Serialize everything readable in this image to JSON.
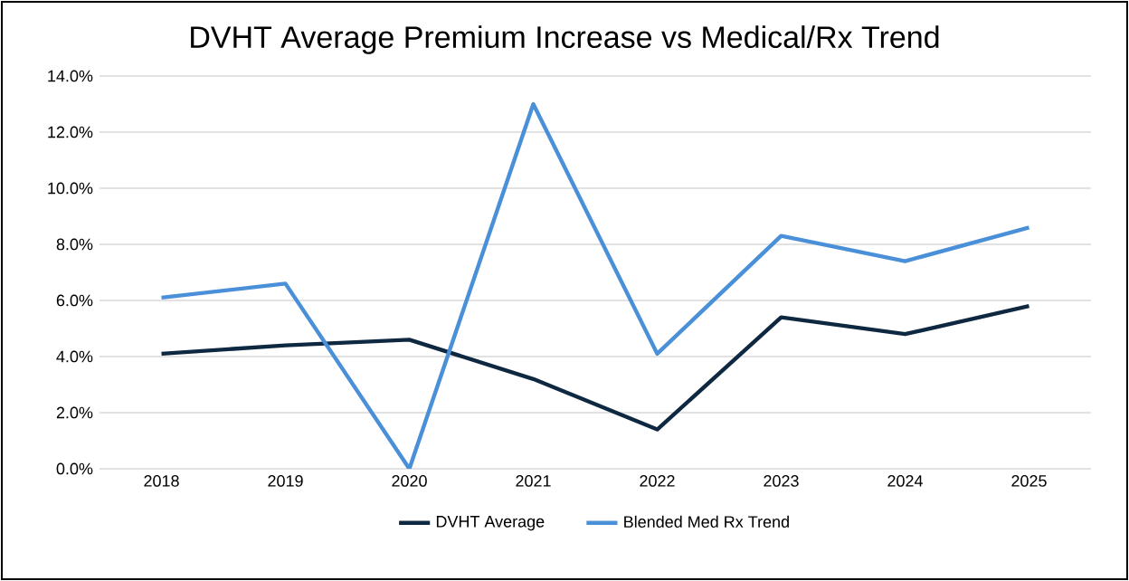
{
  "chart_data": {
    "type": "line",
    "title": "DVHT Average Premium Increase vs Medical/Rx Trend",
    "categories": [
      "2018",
      "2019",
      "2020",
      "2021",
      "2022",
      "2023",
      "2024",
      "2025"
    ],
    "series": [
      {
        "name": "DVHT Average",
        "color": "#0e2841",
        "values": [
          4.1,
          4.4,
          4.6,
          3.2,
          1.4,
          5.4,
          4.8,
          5.8
        ]
      },
      {
        "name": "Blended Med Rx Trend",
        "color": "#4a90d9",
        "values": [
          6.1,
          6.6,
          0.0,
          13.0,
          4.1,
          8.3,
          7.4,
          8.6
        ]
      }
    ],
    "ylim": [
      0,
      14
    ],
    "yticks": [
      {
        "value": 0,
        "label": "0.0%"
      },
      {
        "value": 2,
        "label": "2.0%"
      },
      {
        "value": 4,
        "label": "4.0%"
      },
      {
        "value": 6,
        "label": "6.0%"
      },
      {
        "value": 8,
        "label": "8.0%"
      },
      {
        "value": 10,
        "label": "10.0%"
      },
      {
        "value": 12,
        "label": "12.0%"
      },
      {
        "value": 14,
        "label": "14.0%"
      }
    ],
    "grid": "y",
    "legend": "bottom",
    "marker": "none",
    "line_style": "solid"
  }
}
